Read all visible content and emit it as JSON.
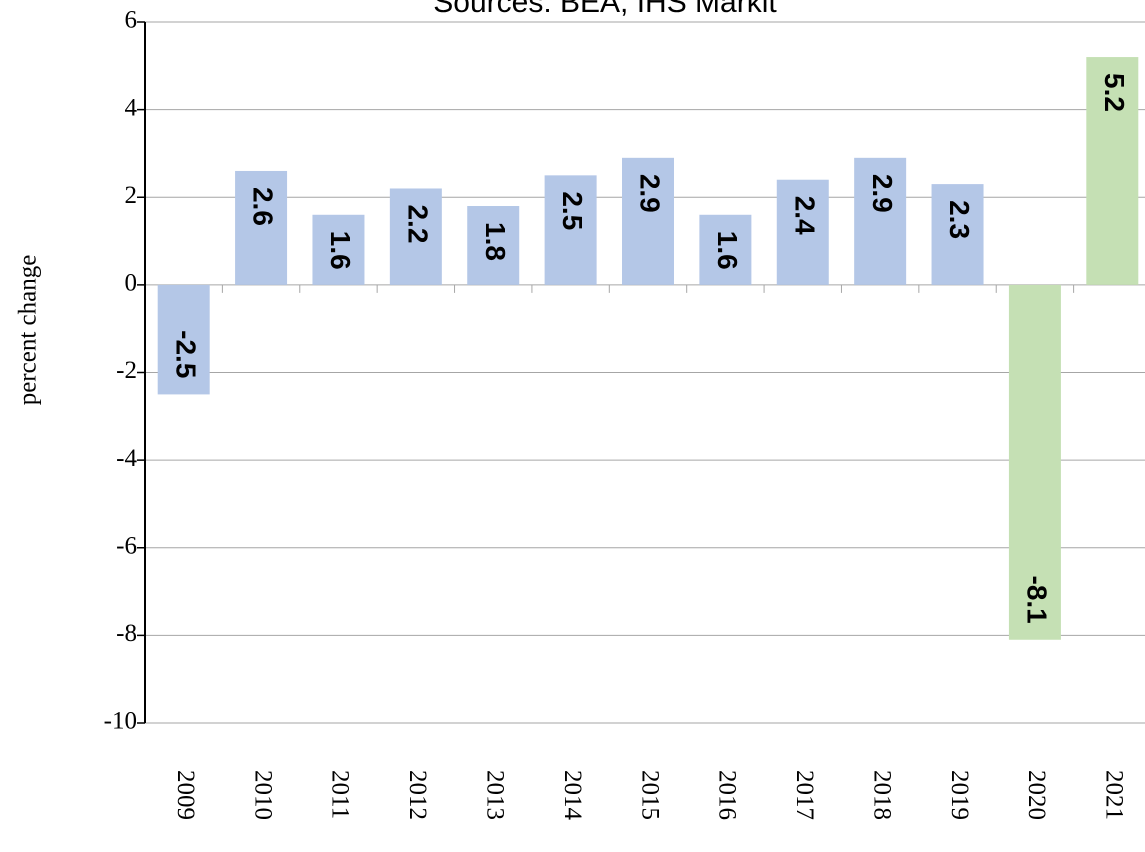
{
  "chart_data": {
    "type": "bar",
    "title": "Sources: BEA, IHS Markit",
    "y_label": "percent change",
    "categories": [
      "2009",
      "2010",
      "2011",
      "2012",
      "2013",
      "2014",
      "2015",
      "2016",
      "2017",
      "2018",
      "2019",
      "2020",
      "2021"
    ],
    "values": [
      -2.5,
      2.6,
      1.6,
      2.2,
      1.8,
      2.5,
      2.9,
      1.6,
      2.4,
      2.9,
      2.3,
      -8.1,
      5.2
    ],
    "colors": [
      "#b4c7e7",
      "#b4c7e7",
      "#b4c7e7",
      "#b4c7e7",
      "#b4c7e7",
      "#b4c7e7",
      "#b4c7e7",
      "#b4c7e7",
      "#b4c7e7",
      "#b4c7e7",
      "#b4c7e7",
      "#c5e0b4",
      "#c5e0b4"
    ],
    "ylim": [
      -10,
      6
    ],
    "yticks": [
      -10,
      -8,
      -6,
      -4,
      -2,
      0,
      2,
      4,
      6
    ],
    "grid": true
  }
}
